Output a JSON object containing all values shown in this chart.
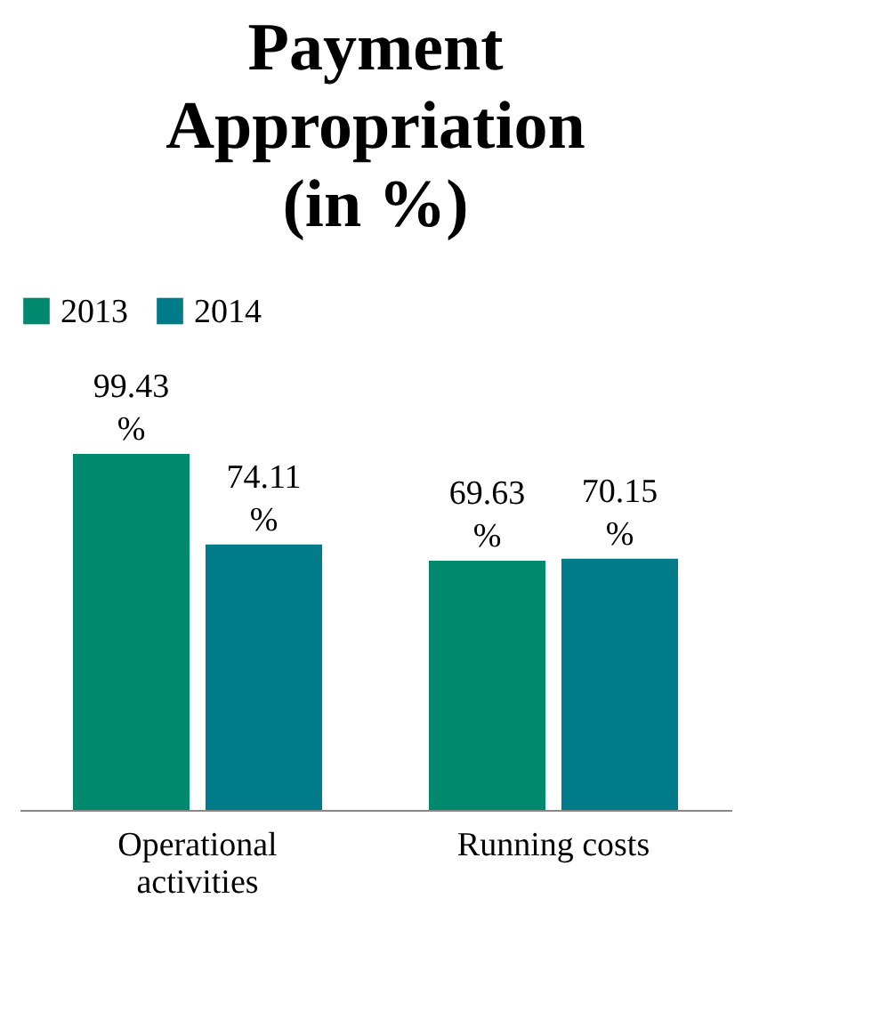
{
  "chart_data": {
    "type": "bar",
    "title": "Payment Appropriation (in %)",
    "categories": [
      "Operational activities",
      "Running costs"
    ],
    "series": [
      {
        "name": "2013",
        "color": "#00896f",
        "values": [
          99.43,
          69.63
        ],
        "value_labels": [
          "99.43 %",
          "69.63 %"
        ]
      },
      {
        "name": "2014",
        "color": "#007b8a",
        "values": [
          74.11,
          70.15
        ],
        "value_labels": [
          "74.11 %",
          "70.15 %"
        ]
      }
    ],
    "legend": "top",
    "grid": false
  }
}
